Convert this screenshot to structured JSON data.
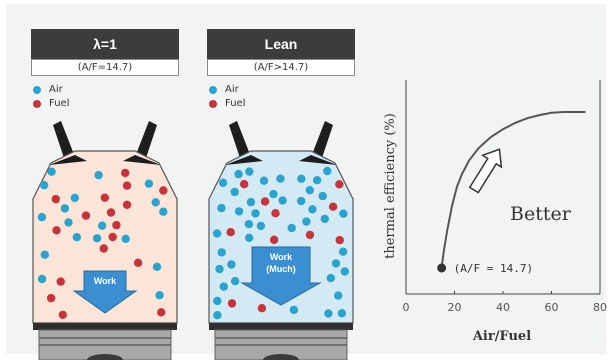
{
  "colors": {
    "air": "#2ba3cf",
    "fuel": "#c8333b",
    "stoich_chamber": "#fbe5d8",
    "lean_chamber": "#d3eaf5",
    "header_bg": "#3c3c3c",
    "work_arrow": "#3a8fd0",
    "curve": "#555555"
  },
  "panels": [
    {
      "title": "λ=1",
      "subtitle": "(A/F=14.7)",
      "legend": [
        {
          "label": "Air",
          "icon": "air-molecule"
        },
        {
          "label": "Fuel",
          "icon": "fuel-molecule"
        }
      ],
      "arrow_lines": [
        "Work"
      ],
      "fuel_count": 17,
      "air_count": 18
    },
    {
      "title": "Lean",
      "subtitle": "(A/F>14.7)",
      "legend": [
        {
          "label": "Air",
          "icon": "air-molecule"
        },
        {
          "label": "Fuel",
          "icon": "fuel-molecule"
        }
      ],
      "arrow_lines": [
        "Work",
        "(Much)"
      ],
      "fuel_count": 11,
      "air_count": 42
    }
  ],
  "chart_data": {
    "type": "line",
    "xlabel": "Air/Fuel",
    "ylabel": "thermal efficiency (%)",
    "xlim": [
      0,
      80
    ],
    "xticks": [
      0,
      20,
      40,
      60,
      80
    ],
    "y_tick_labels": "none",
    "grid": false,
    "series": [
      {
        "x": [
          14.7,
          15.5,
          17,
          19,
          21,
          23,
          26,
          30,
          35,
          40,
          45,
          50,
          55,
          60,
          65,
          70,
          74
        ],
        "y": [
          0.0,
          0.1,
          0.24,
          0.4,
          0.52,
          0.6,
          0.69,
          0.77,
          0.84,
          0.89,
          0.93,
          0.96,
          0.98,
          0.995,
          1.0,
          1.0,
          1.0
        ]
      }
    ],
    "marker": {
      "x": 14.7,
      "y": 0.0,
      "label": "(A/F = 14.7)"
    },
    "annotation": {
      "text": "Better",
      "arrow_direction": "up-right",
      "placement": "middle-right"
    }
  }
}
